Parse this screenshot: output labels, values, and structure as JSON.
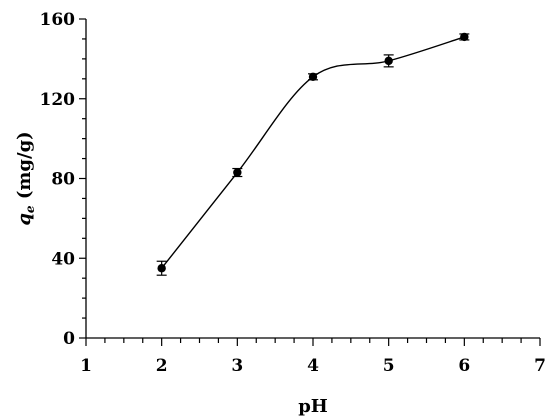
{
  "chart_data": {
    "type": "line",
    "title": "",
    "xlabel": "pH",
    "ylabel_var": "q",
    "ylabel_sub": "e",
    "ylabel_unit": " (mg/g)",
    "xlim": [
      1,
      7
    ],
    "ylim": [
      0,
      160
    ],
    "x_ticks": [
      1,
      2,
      3,
      4,
      5,
      6,
      7
    ],
    "y_ticks": [
      0,
      40,
      80,
      120,
      160
    ],
    "x_ticks_labels": [
      "1",
      "2",
      "3",
      "4",
      "5",
      "6",
      "7"
    ],
    "y_ticks_labels": [
      "0",
      "40",
      "80",
      "120",
      "160"
    ],
    "grid": false,
    "legend": "none",
    "smoothed": true,
    "series": [
      {
        "x": [
          2,
          3,
          4,
          5,
          6
        ],
        "y": [
          35,
          83,
          131,
          139,
          151
        ],
        "error": [
          3.5,
          2,
          1.5,
          3,
          1.5
        ]
      }
    ]
  }
}
